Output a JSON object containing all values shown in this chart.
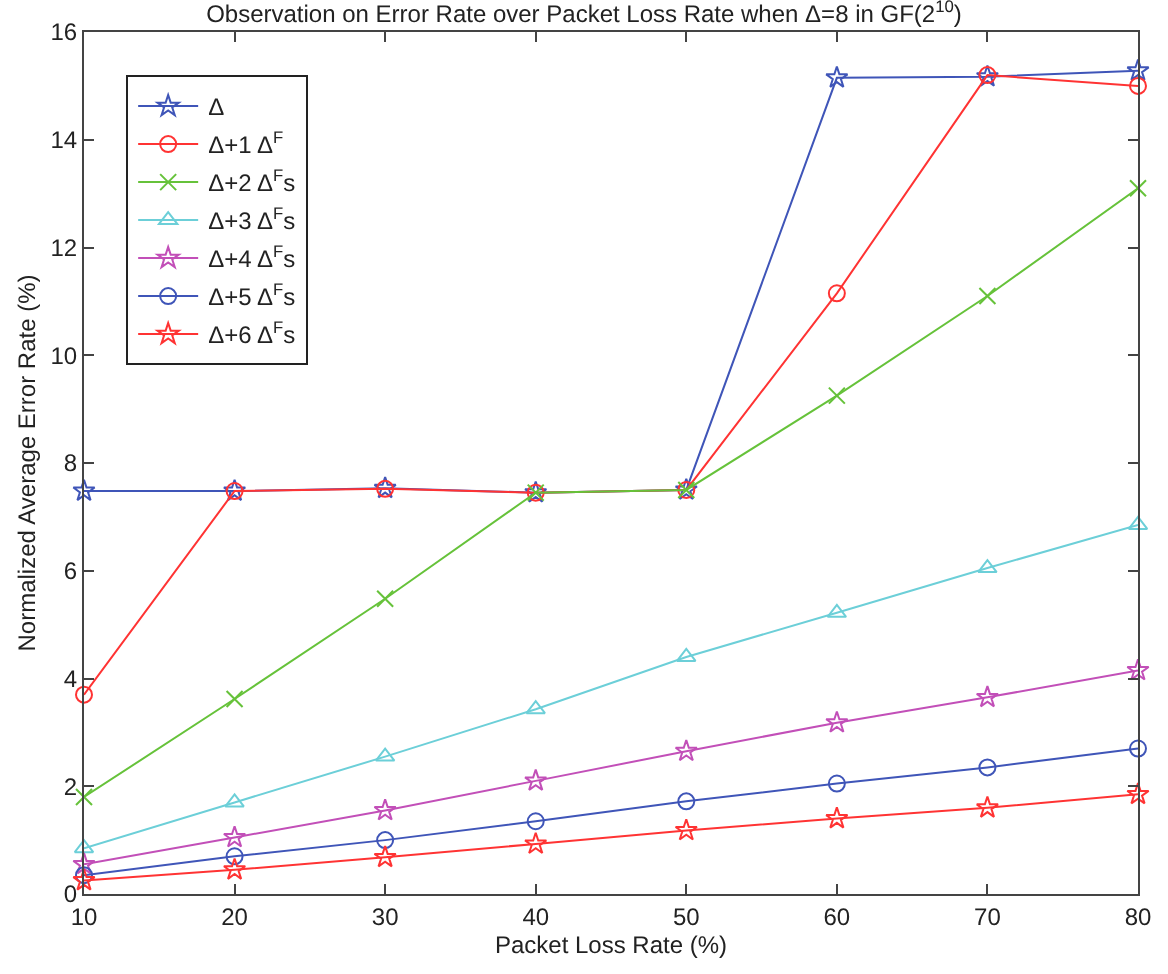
{
  "chart_data": {
    "type": "line",
    "title": "Observation on Error Rate over Packet Loss Rate when Δ=8 in GF(2$^{10}$)",
    "xlabel": "Packet Loss Rate (%)",
    "ylabel": "Normalized Average Error Rate (%)",
    "x": [
      10,
      20,
      30,
      40,
      50,
      60,
      70,
      80
    ],
    "xlim": [
      10,
      80
    ],
    "xticks": [
      10,
      20,
      30,
      40,
      50,
      60,
      70,
      80
    ],
    "ylim": [
      0,
      16
    ],
    "yticks": [
      0,
      2,
      4,
      6,
      8,
      10,
      12,
      14,
      16
    ],
    "legend": "top left",
    "line_style": "solid",
    "series": [
      {
        "name": "Δ",
        "color": "#3f55b8",
        "marker": "star",
        "values": [
          7.48,
          7.48,
          7.53,
          7.45,
          7.5,
          15.15,
          15.17,
          15.28
        ]
      },
      {
        "name": "Δ+1 Δ$^{F}$",
        "color": "#ff3333",
        "marker": "circle",
        "values": [
          3.7,
          7.48,
          7.52,
          7.45,
          7.5,
          11.15,
          15.2,
          15.0
        ]
      },
      {
        "name": "Δ+2 Δ$^{F}$s",
        "color": "#66c23a",
        "marker": "cross",
        "values": [
          1.8,
          3.62,
          5.48,
          7.45,
          7.5,
          9.25,
          11.1,
          13.1
        ]
      },
      {
        "name": "Δ+3 Δ$^{F}$s",
        "color": "#6ccfd8",
        "marker": "triangle",
        "values": [
          0.85,
          1.7,
          2.55,
          3.43,
          4.4,
          5.22,
          6.05,
          6.85
        ]
      },
      {
        "name": "Δ+4 Δ$^{F}$s",
        "color": "#c24fb8",
        "marker": "star",
        "values": [
          0.55,
          1.05,
          1.55,
          2.1,
          2.65,
          3.18,
          3.65,
          4.15
        ]
      },
      {
        "name": "Δ+5 Δ$^{F}$s",
        "color": "#3f55b8",
        "marker": "circle",
        "values": [
          0.35,
          0.7,
          1.0,
          1.35,
          1.72,
          2.05,
          2.35,
          2.7
        ]
      },
      {
        "name": "Δ+6 Δ$^{F}$s",
        "color": "#ff3333",
        "marker": "star",
        "values": [
          0.25,
          0.45,
          0.68,
          0.93,
          1.18,
          1.4,
          1.6,
          1.85
        ]
      }
    ]
  }
}
